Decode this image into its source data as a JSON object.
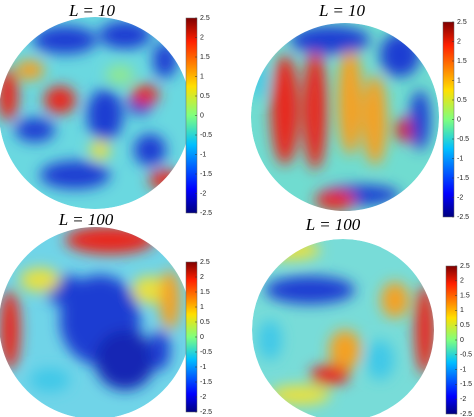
{
  "chart_data": [
    {
      "type": "heatmap",
      "title": "L = 10",
      "clim": [
        -2.5,
        2.5
      ],
      "cticks": [
        2.5,
        2,
        1.5,
        1,
        0.5,
        0,
        -0.5,
        -1,
        -1.5,
        -2,
        -2.5
      ]
    },
    {
      "type": "heatmap",
      "title": "L = 10",
      "clim": [
        -2.5,
        2.5
      ],
      "cticks": [
        2.5,
        2,
        1.5,
        1,
        0.5,
        0,
        -0.5,
        -1,
        -1.5,
        -2,
        -2.5
      ]
    },
    {
      "type": "heatmap",
      "title": "L = 100",
      "clim": [
        -2.5,
        2.5
      ],
      "cticks": [
        2.5,
        2,
        1.5,
        1,
        0.5,
        0,
        -0.5,
        -1,
        -1.5,
        -2,
        -2.5
      ]
    },
    {
      "type": "heatmap",
      "title": "L = 100",
      "clim": [
        -2.5,
        2.5
      ],
      "cticks": [
        2.5,
        2,
        1.5,
        1,
        0.5,
        0,
        -0.5,
        -1,
        -1.5,
        -2,
        -2.5
      ]
    }
  ]
}
